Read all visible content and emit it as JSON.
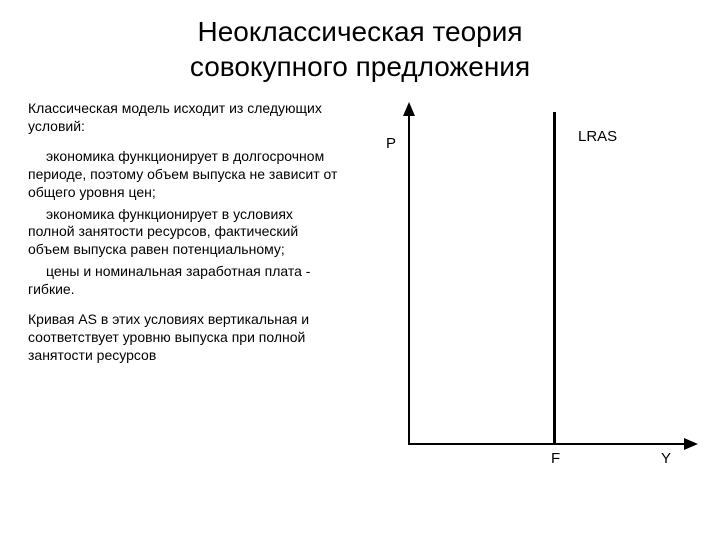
{
  "title_line1": "Неоклассическая теория",
  "title_line2": "совокупного предложения",
  "text": {
    "intro": "Классическая модель исходит из следующих условий:",
    "b1": "экономика функционирует в долгосрочном периоде, поэтому объем выпуска не зависит от общего уровня цен;",
    "b2": "экономика функционирует в условиях полной занятости ресурсов, фактический объем выпуска равен потенциальному;",
    "b3": "цены и номинальная заработная плата - гибкие.",
    "outro": "Кривая AS в этих условиях вертикальная и соответствует уровню выпуска при полной занятости ресурсов"
  },
  "chart": {
    "type": "line",
    "axis_color": "#000000",
    "lras_color": "#000000",
    "background_color": "#ffffff",
    "labels": {
      "p": "P",
      "y": "Y",
      "f": "F",
      "lras": "LRAS"
    },
    "lras_position": 0.52,
    "axis_weight": 2,
    "lras_weight": 3,
    "label_fontsize": 15
  }
}
